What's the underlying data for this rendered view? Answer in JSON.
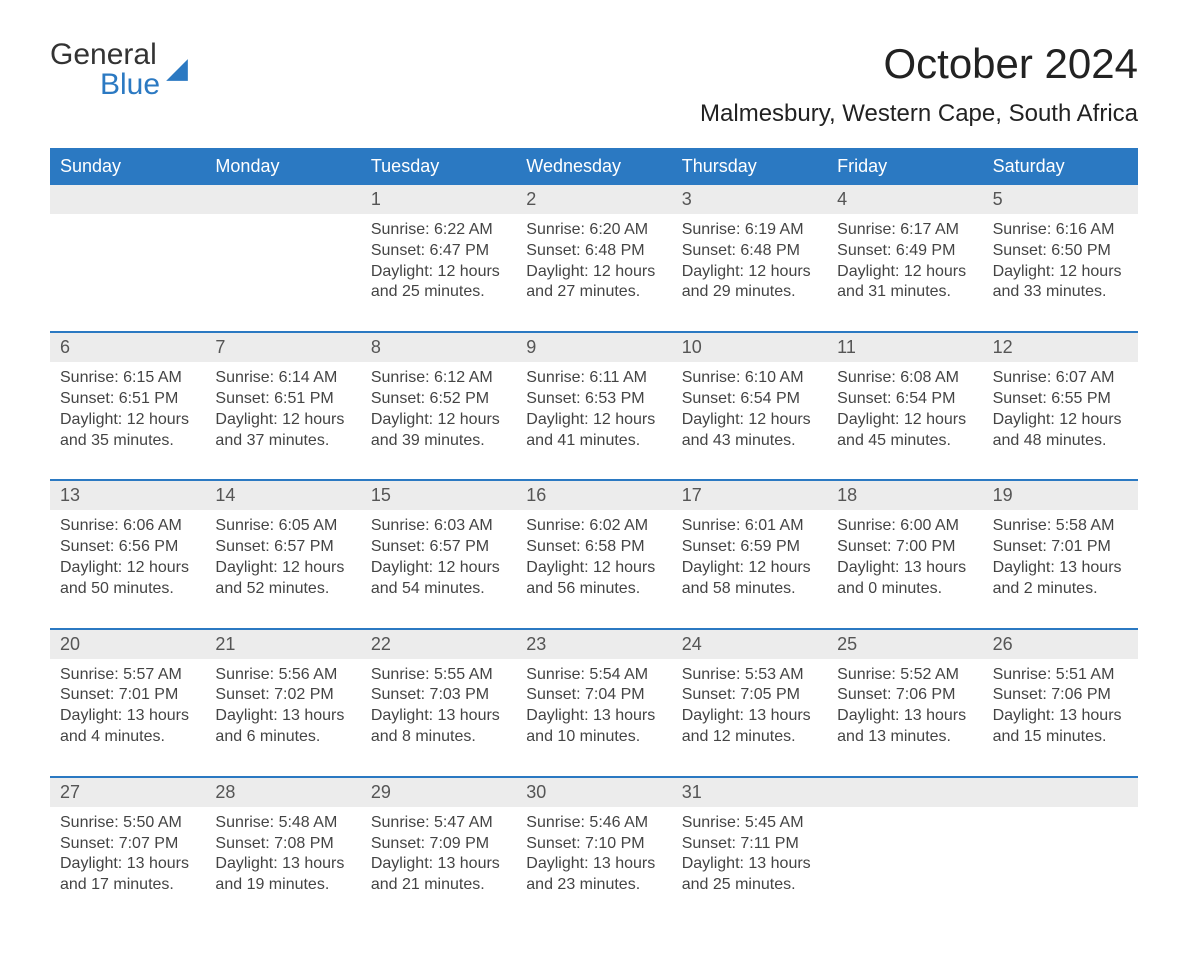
{
  "logo": {
    "general": "General",
    "blue": "Blue"
  },
  "title": "October 2024",
  "location": "Malmesbury, Western Cape, South Africa",
  "colors": {
    "header_bg": "#2b79c2",
    "header_text": "#ffffff",
    "daynum_bg": "#ececec",
    "border": "#2b79c2",
    "body_text": "#444444",
    "page_bg": "#ffffff"
  },
  "layout": {
    "columns": 7,
    "rows": 5
  },
  "day_labels": [
    "Sunday",
    "Monday",
    "Tuesday",
    "Wednesday",
    "Thursday",
    "Friday",
    "Saturday"
  ],
  "weeks": [
    {
      "days": [
        {
          "num": "",
          "sunrise": "",
          "sunset": "",
          "daylight1": "",
          "daylight2": ""
        },
        {
          "num": "",
          "sunrise": "",
          "sunset": "",
          "daylight1": "",
          "daylight2": ""
        },
        {
          "num": "1",
          "sunrise": "Sunrise: 6:22 AM",
          "sunset": "Sunset: 6:47 PM",
          "daylight1": "Daylight: 12 hours",
          "daylight2": "and 25 minutes."
        },
        {
          "num": "2",
          "sunrise": "Sunrise: 6:20 AM",
          "sunset": "Sunset: 6:48 PM",
          "daylight1": "Daylight: 12 hours",
          "daylight2": "and 27 minutes."
        },
        {
          "num": "3",
          "sunrise": "Sunrise: 6:19 AM",
          "sunset": "Sunset: 6:48 PM",
          "daylight1": "Daylight: 12 hours",
          "daylight2": "and 29 minutes."
        },
        {
          "num": "4",
          "sunrise": "Sunrise: 6:17 AM",
          "sunset": "Sunset: 6:49 PM",
          "daylight1": "Daylight: 12 hours",
          "daylight2": "and 31 minutes."
        },
        {
          "num": "5",
          "sunrise": "Sunrise: 6:16 AM",
          "sunset": "Sunset: 6:50 PM",
          "daylight1": "Daylight: 12 hours",
          "daylight2": "and 33 minutes."
        }
      ]
    },
    {
      "days": [
        {
          "num": "6",
          "sunrise": "Sunrise: 6:15 AM",
          "sunset": "Sunset: 6:51 PM",
          "daylight1": "Daylight: 12 hours",
          "daylight2": "and 35 minutes."
        },
        {
          "num": "7",
          "sunrise": "Sunrise: 6:14 AM",
          "sunset": "Sunset: 6:51 PM",
          "daylight1": "Daylight: 12 hours",
          "daylight2": "and 37 minutes."
        },
        {
          "num": "8",
          "sunrise": "Sunrise: 6:12 AM",
          "sunset": "Sunset: 6:52 PM",
          "daylight1": "Daylight: 12 hours",
          "daylight2": "and 39 minutes."
        },
        {
          "num": "9",
          "sunrise": "Sunrise: 6:11 AM",
          "sunset": "Sunset: 6:53 PM",
          "daylight1": "Daylight: 12 hours",
          "daylight2": "and 41 minutes."
        },
        {
          "num": "10",
          "sunrise": "Sunrise: 6:10 AM",
          "sunset": "Sunset: 6:54 PM",
          "daylight1": "Daylight: 12 hours",
          "daylight2": "and 43 minutes."
        },
        {
          "num": "11",
          "sunrise": "Sunrise: 6:08 AM",
          "sunset": "Sunset: 6:54 PM",
          "daylight1": "Daylight: 12 hours",
          "daylight2": "and 45 minutes."
        },
        {
          "num": "12",
          "sunrise": "Sunrise: 6:07 AM",
          "sunset": "Sunset: 6:55 PM",
          "daylight1": "Daylight: 12 hours",
          "daylight2": "and 48 minutes."
        }
      ]
    },
    {
      "days": [
        {
          "num": "13",
          "sunrise": "Sunrise: 6:06 AM",
          "sunset": "Sunset: 6:56 PM",
          "daylight1": "Daylight: 12 hours",
          "daylight2": "and 50 minutes."
        },
        {
          "num": "14",
          "sunrise": "Sunrise: 6:05 AM",
          "sunset": "Sunset: 6:57 PM",
          "daylight1": "Daylight: 12 hours",
          "daylight2": "and 52 minutes."
        },
        {
          "num": "15",
          "sunrise": "Sunrise: 6:03 AM",
          "sunset": "Sunset: 6:57 PM",
          "daylight1": "Daylight: 12 hours",
          "daylight2": "and 54 minutes."
        },
        {
          "num": "16",
          "sunrise": "Sunrise: 6:02 AM",
          "sunset": "Sunset: 6:58 PM",
          "daylight1": "Daylight: 12 hours",
          "daylight2": "and 56 minutes."
        },
        {
          "num": "17",
          "sunrise": "Sunrise: 6:01 AM",
          "sunset": "Sunset: 6:59 PM",
          "daylight1": "Daylight: 12 hours",
          "daylight2": "and 58 minutes."
        },
        {
          "num": "18",
          "sunrise": "Sunrise: 6:00 AM",
          "sunset": "Sunset: 7:00 PM",
          "daylight1": "Daylight: 13 hours",
          "daylight2": "and 0 minutes."
        },
        {
          "num": "19",
          "sunrise": "Sunrise: 5:58 AM",
          "sunset": "Sunset: 7:01 PM",
          "daylight1": "Daylight: 13 hours",
          "daylight2": "and 2 minutes."
        }
      ]
    },
    {
      "days": [
        {
          "num": "20",
          "sunrise": "Sunrise: 5:57 AM",
          "sunset": "Sunset: 7:01 PM",
          "daylight1": "Daylight: 13 hours",
          "daylight2": "and 4 minutes."
        },
        {
          "num": "21",
          "sunrise": "Sunrise: 5:56 AM",
          "sunset": "Sunset: 7:02 PM",
          "daylight1": "Daylight: 13 hours",
          "daylight2": "and 6 minutes."
        },
        {
          "num": "22",
          "sunrise": "Sunrise: 5:55 AM",
          "sunset": "Sunset: 7:03 PM",
          "daylight1": "Daylight: 13 hours",
          "daylight2": "and 8 minutes."
        },
        {
          "num": "23",
          "sunrise": "Sunrise: 5:54 AM",
          "sunset": "Sunset: 7:04 PM",
          "daylight1": "Daylight: 13 hours",
          "daylight2": "and 10 minutes."
        },
        {
          "num": "24",
          "sunrise": "Sunrise: 5:53 AM",
          "sunset": "Sunset: 7:05 PM",
          "daylight1": "Daylight: 13 hours",
          "daylight2": "and 12 minutes."
        },
        {
          "num": "25",
          "sunrise": "Sunrise: 5:52 AM",
          "sunset": "Sunset: 7:06 PM",
          "daylight1": "Daylight: 13 hours",
          "daylight2": "and 13 minutes."
        },
        {
          "num": "26",
          "sunrise": "Sunrise: 5:51 AM",
          "sunset": "Sunset: 7:06 PM",
          "daylight1": "Daylight: 13 hours",
          "daylight2": "and 15 minutes."
        }
      ]
    },
    {
      "days": [
        {
          "num": "27",
          "sunrise": "Sunrise: 5:50 AM",
          "sunset": "Sunset: 7:07 PM",
          "daylight1": "Daylight: 13 hours",
          "daylight2": "and 17 minutes."
        },
        {
          "num": "28",
          "sunrise": "Sunrise: 5:48 AM",
          "sunset": "Sunset: 7:08 PM",
          "daylight1": "Daylight: 13 hours",
          "daylight2": "and 19 minutes."
        },
        {
          "num": "29",
          "sunrise": "Sunrise: 5:47 AM",
          "sunset": "Sunset: 7:09 PM",
          "daylight1": "Daylight: 13 hours",
          "daylight2": "and 21 minutes."
        },
        {
          "num": "30",
          "sunrise": "Sunrise: 5:46 AM",
          "sunset": "Sunset: 7:10 PM",
          "daylight1": "Daylight: 13 hours",
          "daylight2": "and 23 minutes."
        },
        {
          "num": "31",
          "sunrise": "Sunrise: 5:45 AM",
          "sunset": "Sunset: 7:11 PM",
          "daylight1": "Daylight: 13 hours",
          "daylight2": "and 25 minutes."
        },
        {
          "num": "",
          "sunrise": "",
          "sunset": "",
          "daylight1": "",
          "daylight2": ""
        },
        {
          "num": "",
          "sunrise": "",
          "sunset": "",
          "daylight1": "",
          "daylight2": ""
        }
      ]
    }
  ]
}
